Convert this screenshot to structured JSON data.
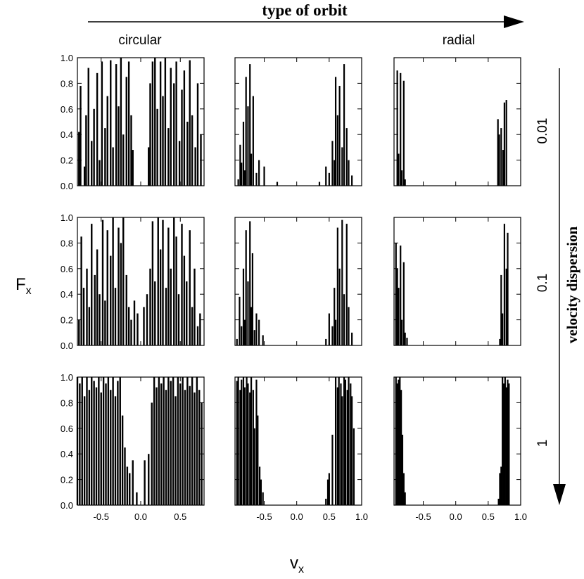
{
  "figure": {
    "top_title": "type of orbit",
    "right_title": "velocity dispersion",
    "ylabel": "F",
    "ylabel_sub": "x",
    "xlabel": "v",
    "xlabel_sub": "x",
    "column_labels": [
      "circular",
      "",
      "radial"
    ],
    "row_labels": [
      "0.01",
      "0.1",
      "1"
    ]
  },
  "chart_data": {
    "type": "bar",
    "grid": false,
    "ylim": [
      0,
      1
    ],
    "yticks": [
      "0.0",
      "0.2",
      "0.4",
      "0.6",
      "0.8",
      "1.0"
    ],
    "xlims": [
      [
        -0.8,
        0.8
      ],
      [
        -0.95,
        1.0
      ],
      [
        -0.95,
        1.0
      ]
    ],
    "xticks": [
      [
        "-0.5",
        "0.0",
        "0.5"
      ],
      [
        "-0.5",
        "0.0",
        "0.5",
        "1.0"
      ],
      [
        "-0.5",
        "0.0",
        "0.5",
        "1.0"
      ]
    ],
    "panels": [
      {
        "row": "0.01",
        "column": "circular",
        "x": [
          -0.78,
          -0.76,
          -0.71,
          -0.69,
          -0.66,
          -0.62,
          -0.59,
          -0.55,
          -0.52,
          -0.49,
          -0.45,
          -0.42,
          -0.38,
          -0.35,
          -0.31,
          -0.28,
          -0.25,
          -0.22,
          -0.18,
          -0.15,
          -0.12,
          -0.1,
          0.1,
          0.12,
          0.15,
          0.18,
          0.21,
          0.25,
          0.28,
          0.31,
          0.35,
          0.38,
          0.42,
          0.45,
          0.49,
          0.52,
          0.55,
          0.59,
          0.62,
          0.65,
          0.69,
          0.72,
          0.76
        ],
        "y": [
          0.42,
          0.78,
          0.15,
          0.55,
          0.92,
          0.35,
          0.6,
          0.88,
          0.2,
          0.97,
          0.45,
          0.7,
          0.98,
          0.3,
          0.95,
          0.62,
          1.0,
          0.4,
          0.85,
          0.97,
          0.55,
          0.28,
          0.3,
          0.8,
          0.97,
          1.0,
          0.6,
          0.97,
          0.7,
          1.0,
          0.45,
          0.92,
          0.8,
          0.97,
          0.35,
          0.75,
          0.9,
          0.5,
          0.98,
          0.55,
          0.3,
          0.8,
          0.4
        ]
      },
      {
        "row": "0.01",
        "column": "",
        "x": [
          -0.9,
          -0.87,
          -0.85,
          -0.82,
          -0.8,
          -0.78,
          -0.75,
          -0.72,
          -0.7,
          -0.67,
          -0.62,
          -0.58,
          -0.5,
          -0.3,
          0.35,
          0.45,
          0.5,
          0.55,
          0.58,
          0.6,
          0.63,
          0.66,
          0.7,
          0.73,
          0.77,
          0.8,
          0.85
        ],
        "y": [
          0.05,
          0.32,
          0.18,
          0.5,
          0.12,
          0.85,
          0.62,
          0.95,
          0.25,
          0.7,
          0.1,
          0.2,
          0.15,
          0.03,
          0.03,
          0.15,
          0.1,
          0.35,
          0.2,
          0.85,
          0.55,
          0.78,
          0.3,
          0.95,
          0.45,
          0.2,
          0.08
        ]
      },
      {
        "row": "0.01",
        "column": "radial",
        "x": [
          -0.9,
          -0.88,
          -0.85,
          -0.83,
          -0.8,
          -0.78,
          0.65,
          0.67,
          0.7,
          0.73,
          0.75,
          0.78
        ],
        "y": [
          0.9,
          0.25,
          0.88,
          0.12,
          0.82,
          0.05,
          0.52,
          0.4,
          0.45,
          0.28,
          0.65,
          0.67
        ]
      },
      {
        "row": "0.1",
        "column": "circular",
        "x": [
          -0.78,
          -0.75,
          -0.72,
          -0.68,
          -0.65,
          -0.62,
          -0.58,
          -0.55,
          -0.52,
          -0.48,
          -0.45,
          -0.42,
          -0.38,
          -0.35,
          -0.32,
          -0.28,
          -0.25,
          -0.22,
          -0.18,
          -0.15,
          -0.12,
          -0.08,
          -0.04,
          0.04,
          0.08,
          0.12,
          0.15,
          0.18,
          0.22,
          0.25,
          0.28,
          0.32,
          0.35,
          0.38,
          0.42,
          0.45,
          0.48,
          0.52,
          0.55,
          0.58,
          0.62,
          0.65,
          0.68,
          0.72,
          0.75
        ],
        "y": [
          0.2,
          0.85,
          0.45,
          0.6,
          0.3,
          0.95,
          0.55,
          0.75,
          0.4,
          0.98,
          0.35,
          0.9,
          0.7,
          1.0,
          0.45,
          0.92,
          0.8,
          1.0,
          0.55,
          0.3,
          0.2,
          0.35,
          0.25,
          0.3,
          0.4,
          0.6,
          0.97,
          0.5,
          1.0,
          0.75,
          0.98,
          0.45,
          0.92,
          0.6,
          1.0,
          0.85,
          0.4,
          0.95,
          0.7,
          0.5,
          0.9,
          0.3,
          0.6,
          0.15,
          0.25
        ]
      },
      {
        "row": "0.1",
        "column": "",
        "x": [
          -0.92,
          -0.88,
          -0.85,
          -0.82,
          -0.8,
          -0.78,
          -0.75,
          -0.72,
          -0.7,
          -0.68,
          -0.65,
          -0.62,
          -0.58,
          -0.52,
          0.45,
          0.5,
          0.55,
          0.58,
          0.6,
          0.63,
          0.66,
          0.7,
          0.73,
          0.77,
          0.8,
          0.85
        ],
        "y": [
          0.05,
          0.38,
          0.15,
          0.6,
          0.2,
          0.9,
          0.5,
          0.97,
          0.3,
          0.72,
          0.12,
          0.25,
          0.2,
          0.08,
          0.05,
          0.25,
          0.15,
          0.45,
          0.2,
          0.92,
          0.6,
          0.98,
          0.4,
          0.95,
          0.3,
          0.1
        ]
      },
      {
        "row": "0.1",
        "column": "radial",
        "x": [
          -0.92,
          -0.9,
          -0.88,
          -0.85,
          -0.83,
          -0.8,
          -0.78,
          -0.75,
          0.68,
          0.7,
          0.72,
          0.75,
          0.78,
          0.8
        ],
        "y": [
          0.8,
          0.6,
          0.45,
          0.78,
          0.2,
          0.65,
          0.1,
          0.06,
          0.05,
          0.55,
          0.25,
          0.95,
          0.6,
          0.88
        ]
      },
      {
        "row": "1",
        "column": "circular",
        "x": [
          -0.8,
          -0.77,
          -0.74,
          -0.71,
          -0.68,
          -0.65,
          -0.62,
          -0.59,
          -0.56,
          -0.53,
          -0.5,
          -0.47,
          -0.44,
          -0.41,
          -0.38,
          -0.35,
          -0.32,
          -0.29,
          -0.26,
          -0.23,
          -0.2,
          -0.17,
          -0.14,
          -0.1,
          -0.05,
          0.05,
          0.1,
          0.14,
          0.17,
          0.2,
          0.23,
          0.26,
          0.29,
          0.32,
          0.35,
          0.38,
          0.41,
          0.44,
          0.47,
          0.5,
          0.53,
          0.56,
          0.59,
          0.62,
          0.65,
          0.68,
          0.71,
          0.74,
          0.77
        ],
        "y": [
          1.0,
          0.95,
          1.0,
          0.85,
          1.0,
          0.9,
          1.0,
          0.97,
          0.92,
          1.0,
          0.88,
          1.0,
          0.95,
          1.0,
          0.9,
          1.0,
          0.85,
          0.97,
          1.0,
          0.7,
          0.45,
          0.3,
          0.25,
          0.35,
          0.1,
          0.35,
          0.4,
          0.8,
          1.0,
          0.92,
          1.0,
          0.95,
          1.0,
          0.9,
          1.0,
          0.97,
          1.0,
          0.85,
          1.0,
          0.95,
          1.0,
          0.9,
          1.0,
          0.93,
          1.0,
          0.88,
          1.0,
          0.9,
          0.8
        ]
      },
      {
        "row": "1",
        "column": "",
        "x": [
          -0.92,
          -0.9,
          -0.87,
          -0.85,
          -0.82,
          -0.8,
          -0.77,
          -0.75,
          -0.72,
          -0.7,
          -0.67,
          -0.65,
          -0.62,
          -0.6,
          -0.57,
          -0.55,
          -0.52,
          0.45,
          0.48,
          0.5,
          0.55,
          0.6,
          0.63,
          0.65,
          0.68,
          0.7,
          0.73,
          0.75,
          0.78,
          0.8,
          0.83,
          0.85,
          0.88
        ],
        "y": [
          0.97,
          1.0,
          0.9,
          0.98,
          1.0,
          0.92,
          1.0,
          0.95,
          0.88,
          1.0,
          0.9,
          0.6,
          0.98,
          0.7,
          0.3,
          0.2,
          0.1,
          0.05,
          0.2,
          0.25,
          0.55,
          1.0,
          0.92,
          1.0,
          0.95,
          0.85,
          1.0,
          0.98,
          0.9,
          1.0,
          0.95,
          0.85,
          0.6
        ]
      },
      {
        "row": "1",
        "column": "radial",
        "x": [
          -0.92,
          -0.9,
          -0.88,
          -0.86,
          -0.84,
          -0.82,
          -0.8,
          -0.78,
          0.66,
          0.68,
          0.7,
          0.72,
          0.74,
          0.76,
          0.78,
          0.8,
          0.82
        ],
        "y": [
          1.0,
          0.95,
          0.98,
          1.0,
          0.9,
          0.55,
          0.25,
          0.1,
          0.05,
          0.25,
          0.3,
          1.0,
          0.95,
          1.0,
          0.92,
          0.98,
          0.95
        ]
      }
    ]
  }
}
